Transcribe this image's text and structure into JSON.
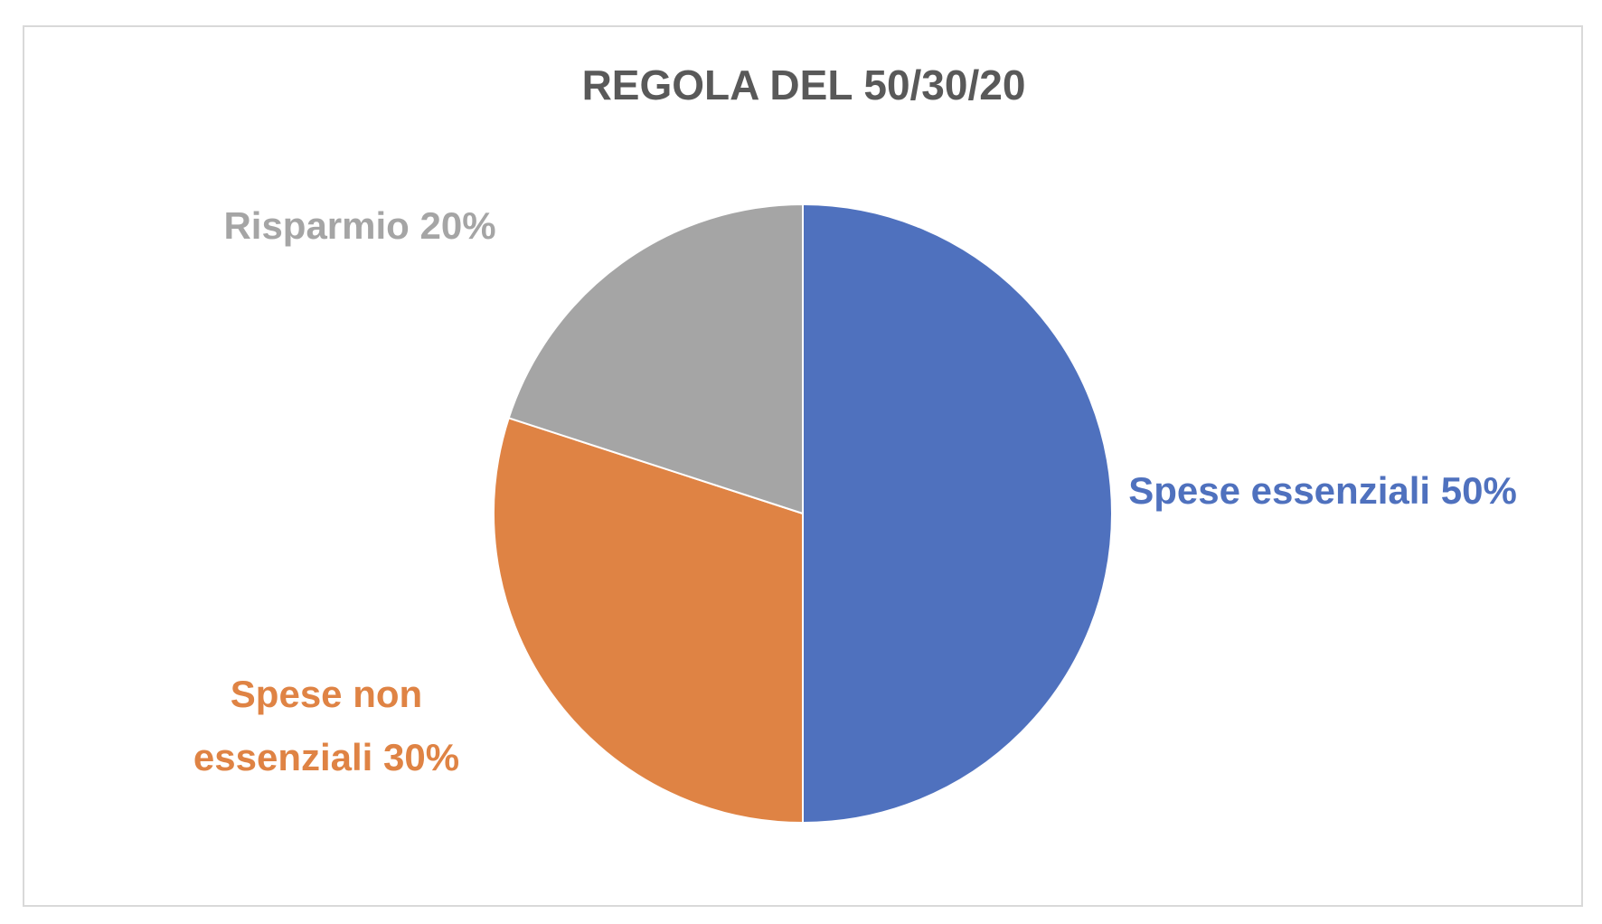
{
  "chart_data": {
    "type": "pie",
    "title": "REGOLA DEL 50/30/20",
    "categories": [
      "Spese essenziali",
      "Spese non essenziali",
      "Risparmio"
    ],
    "values": [
      50,
      30,
      20
    ],
    "value_labels": [
      "50%",
      "30%",
      "20%"
    ],
    "colors": [
      "#4f71be",
      "#df8344",
      "#a5a5a5"
    ]
  }
}
